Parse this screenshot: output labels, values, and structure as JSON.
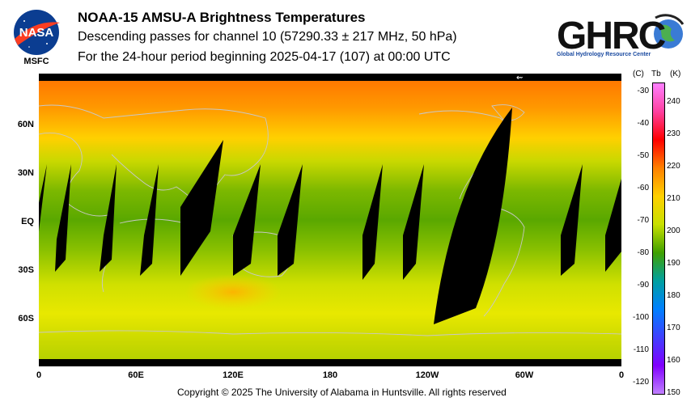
{
  "header": {
    "title": "NOAA-15 AMSU-A Brightness Temperatures",
    "subtitle": "Descending passes for channel 10 (57290.33 ± 217 MHz, 50 hPa)",
    "period": "For the 24-hour period beginning 2025-04-17 (107) at 00:00 UTC"
  },
  "logos": {
    "nasa": {
      "text": "NASA",
      "caption": "MSFC"
    },
    "ghrc": {
      "text": "GHRC",
      "caption": "Global Hydrology Resource Center"
    }
  },
  "map": {
    "lat_labels": [
      "60N",
      "30N",
      "EQ",
      "30S",
      "60S"
    ],
    "lon_labels": [
      "0",
      "60E",
      "120E",
      "180",
      "120W",
      "60W",
      "0"
    ],
    "arrow_glyph": "⇜"
  },
  "colorbar": {
    "header_c": "(C)",
    "header_tb": "Tb",
    "header_k": "(K)",
    "celsius_ticks": [
      "-30",
      "-40",
      "-50",
      "-60",
      "-70",
      "-80",
      "-90",
      "-100",
      "-110",
      "-120"
    ],
    "kelvin_ticks": [
      "240",
      "230",
      "220",
      "210",
      "200",
      "190",
      "180",
      "170",
      "160",
      "150"
    ],
    "colors": [
      "#ff80ff",
      "#ff40a0",
      "#ff0000",
      "#ff8000",
      "#ffd000",
      "#c8e000",
      "#40a000",
      "#00a0a0",
      "#0080ff",
      "#4040ff",
      "#8000ff",
      "#c080ff"
    ]
  },
  "footer": {
    "copyright": "Copyright © 2025 The University of Alabama in Huntsville.  All rights reserved"
  }
}
